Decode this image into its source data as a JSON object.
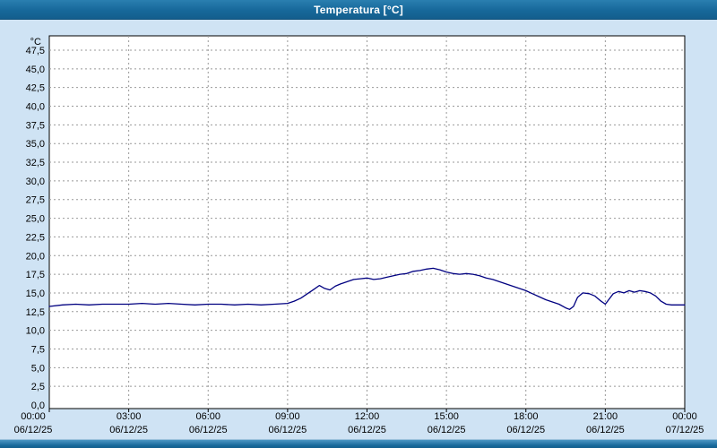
{
  "window": {
    "title": "Temperatura [°C]"
  },
  "colors": {
    "titlebar": "#17689a",
    "background": "#cfe3f4",
    "plot_bg": "#ffffff",
    "grid": "#999999",
    "border": "#000000",
    "line": "#000080"
  },
  "chart_data": {
    "type": "line",
    "title": "Temperatura [°C]",
    "y_unit": "°C",
    "ylim": [
      0,
      47.5
    ],
    "ytick_step": 2.5,
    "yticks": [
      "0,0",
      "2,5",
      "5,0",
      "7,5",
      "10,0",
      "12,5",
      "15,0",
      "17,5",
      "20,0",
      "22,5",
      "25,0",
      "27,5",
      "30,0",
      "32,5",
      "35,0",
      "37,5",
      "40,0",
      "42,5",
      "45,0",
      "47,5"
    ],
    "xlim_hours": [
      0,
      24
    ],
    "grid": "dashed",
    "legend": "none",
    "xticks": [
      {
        "time": "00:00",
        "date": "06/12/25"
      },
      {
        "time": "03:00",
        "date": "06/12/25"
      },
      {
        "time": "06:00",
        "date": "06/12/25"
      },
      {
        "time": "09:00",
        "date": "06/12/25"
      },
      {
        "time": "12:00",
        "date": "06/12/25"
      },
      {
        "time": "15:00",
        "date": "06/12/25"
      },
      {
        "time": "18:00",
        "date": "06/12/25"
      },
      {
        "time": "21:00",
        "date": "06/12/25"
      },
      {
        "time": "00:00",
        "date": "07/12/25"
      }
    ],
    "series": [
      {
        "name": "Temperatura",
        "color": "#000080",
        "points": [
          [
            0,
            13.2
          ],
          [
            0.5,
            13.4
          ],
          [
            1,
            13.5
          ],
          [
            1.5,
            13.4
          ],
          [
            2,
            13.5
          ],
          [
            2.5,
            13.5
          ],
          [
            3,
            13.5
          ],
          [
            3.5,
            13.6
          ],
          [
            4,
            13.5
          ],
          [
            4.5,
            13.6
          ],
          [
            5,
            13.5
          ],
          [
            5.5,
            13.4
          ],
          [
            6,
            13.5
          ],
          [
            6.5,
            13.5
          ],
          [
            7,
            13.4
          ],
          [
            7.5,
            13.5
          ],
          [
            8,
            13.4
          ],
          [
            8.5,
            13.5
          ],
          [
            9,
            13.6
          ],
          [
            9.25,
            13.9
          ],
          [
            9.5,
            14.3
          ],
          [
            9.75,
            14.9
          ],
          [
            10,
            15.5
          ],
          [
            10.2,
            16.0
          ],
          [
            10.4,
            15.6
          ],
          [
            10.6,
            15.4
          ],
          [
            10.8,
            15.9
          ],
          [
            11,
            16.2
          ],
          [
            11.25,
            16.5
          ],
          [
            11.5,
            16.8
          ],
          [
            11.75,
            16.9
          ],
          [
            12,
            17.0
          ],
          [
            12.25,
            16.8
          ],
          [
            12.5,
            16.9
          ],
          [
            12.75,
            17.1
          ],
          [
            13,
            17.3
          ],
          [
            13.25,
            17.5
          ],
          [
            13.5,
            17.6
          ],
          [
            13.75,
            17.9
          ],
          [
            14,
            18.0
          ],
          [
            14.25,
            18.2
          ],
          [
            14.5,
            18.3
          ],
          [
            14.75,
            18.1
          ],
          [
            15,
            17.8
          ],
          [
            15.25,
            17.6
          ],
          [
            15.5,
            17.5
          ],
          [
            15.75,
            17.6
          ],
          [
            16,
            17.5
          ],
          [
            16.25,
            17.3
          ],
          [
            16.5,
            17.0
          ],
          [
            16.75,
            16.8
          ],
          [
            17,
            16.5
          ],
          [
            17.25,
            16.2
          ],
          [
            17.5,
            15.9
          ],
          [
            17.75,
            15.6
          ],
          [
            18,
            15.3
          ],
          [
            18.25,
            14.9
          ],
          [
            18.5,
            14.5
          ],
          [
            18.75,
            14.1
          ],
          [
            19,
            13.8
          ],
          [
            19.25,
            13.5
          ],
          [
            19.5,
            13.0
          ],
          [
            19.65,
            12.8
          ],
          [
            19.8,
            13.2
          ],
          [
            19.95,
            14.4
          ],
          [
            20.15,
            15.0
          ],
          [
            20.4,
            14.9
          ],
          [
            20.6,
            14.6
          ],
          [
            20.8,
            14.0
          ],
          [
            21,
            13.5
          ],
          [
            21.15,
            14.2
          ],
          [
            21.3,
            14.9
          ],
          [
            21.5,
            15.2
          ],
          [
            21.7,
            15.0
          ],
          [
            21.9,
            15.3
          ],
          [
            22.1,
            15.1
          ],
          [
            22.3,
            15.3
          ],
          [
            22.5,
            15.2
          ],
          [
            22.7,
            15.0
          ],
          [
            22.9,
            14.6
          ],
          [
            23.1,
            13.9
          ],
          [
            23.3,
            13.5
          ],
          [
            23.5,
            13.4
          ],
          [
            23.75,
            13.4
          ],
          [
            24,
            13.4
          ]
        ]
      }
    ]
  }
}
